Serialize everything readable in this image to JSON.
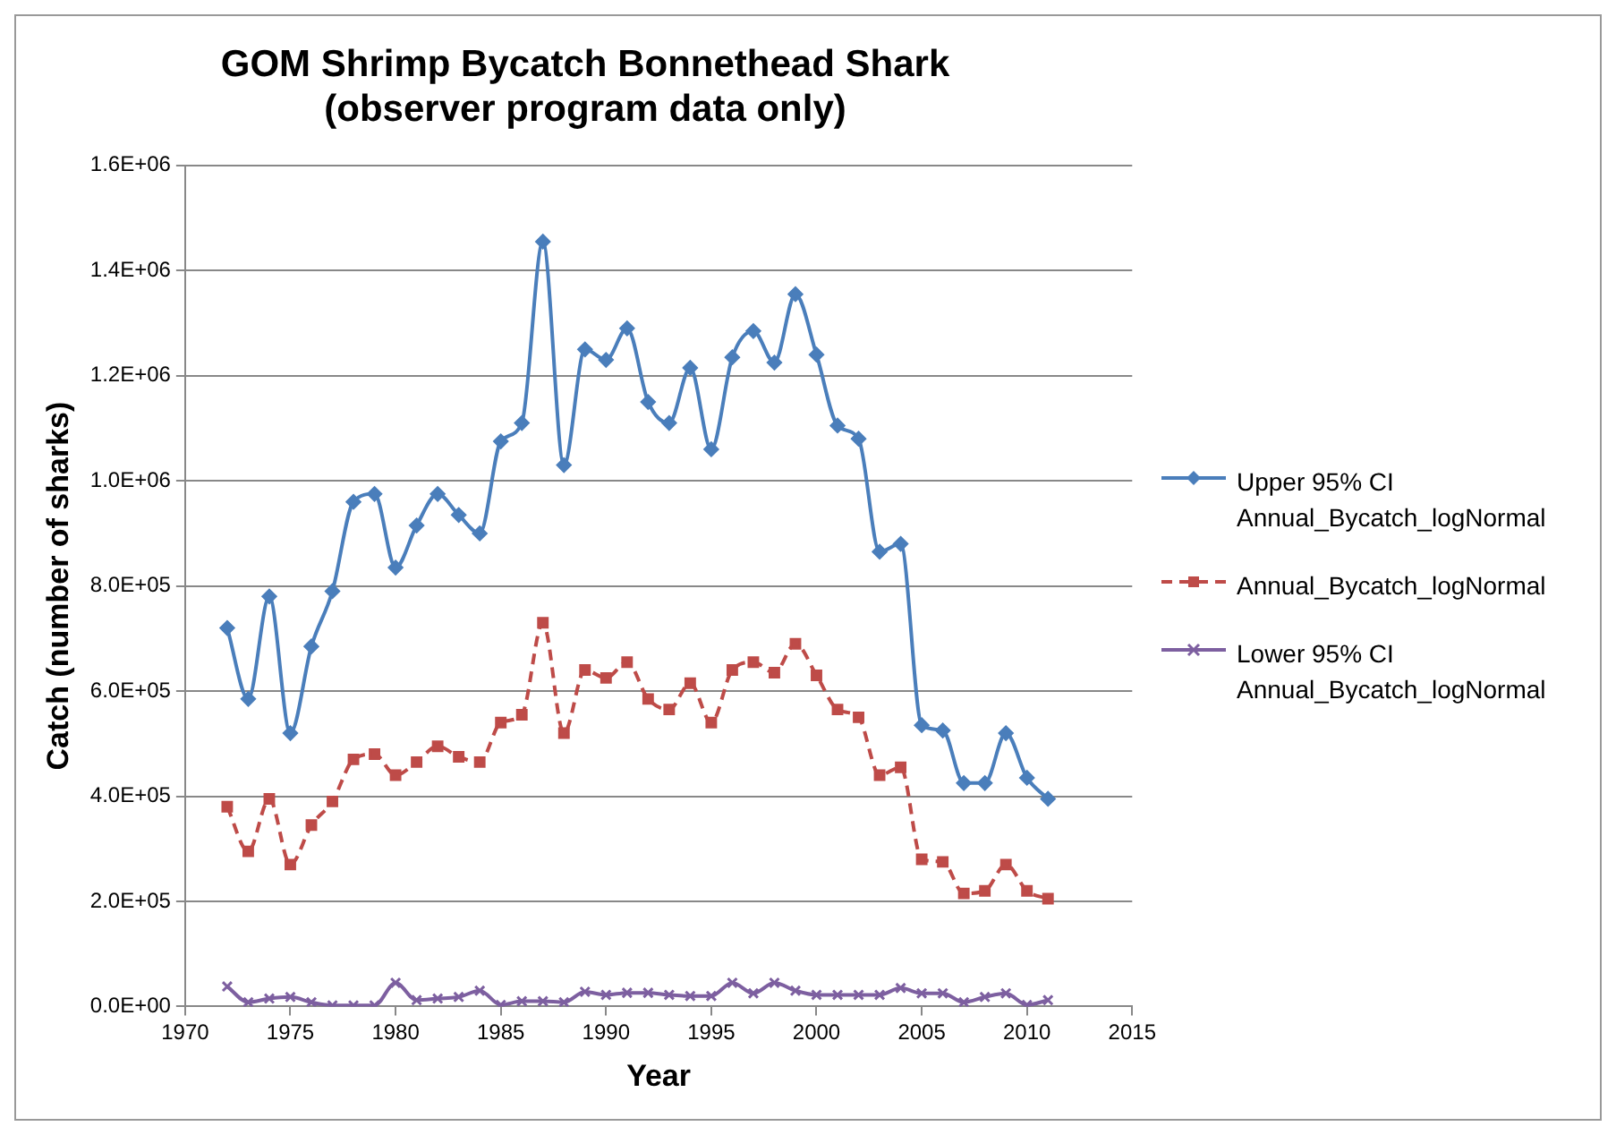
{
  "chart_data": {
    "type": "line",
    "title": "GOM Shrimp Bycatch Bonnethead Shark\n(observer program data only)",
    "xlabel": "Year",
    "ylabel": "Catch (number of sharks)",
    "x": [
      1972,
      1973,
      1974,
      1975,
      1976,
      1977,
      1978,
      1979,
      1980,
      1981,
      1982,
      1983,
      1984,
      1985,
      1986,
      1987,
      1988,
      1989,
      1990,
      1991,
      1992,
      1993,
      1994,
      1995,
      1996,
      1997,
      1998,
      1999,
      2000,
      2001,
      2002,
      2003,
      2004,
      2005,
      2006,
      2007,
      2008,
      2009,
      2010,
      2011
    ],
    "series": [
      {
        "name": "Upper 95% CI Annual_Bycatch_logNormal",
        "color": "#4a7ebb",
        "marker": "diamond",
        "line_style": "solid",
        "values": [
          720000,
          585000,
          780000,
          520000,
          685000,
          790000,
          960000,
          975000,
          835000,
          915000,
          975000,
          935000,
          900000,
          1075000,
          1110000,
          1455000,
          1030000,
          1250000,
          1230000,
          1290000,
          1150000,
          1110000,
          1215000,
          1060000,
          1235000,
          1285000,
          1225000,
          1355000,
          1240000,
          1105000,
          1080000,
          865000,
          880000,
          535000,
          525000,
          425000,
          425000,
          520000,
          435000,
          395000
        ]
      },
      {
        "name": "Annual_Bycatch_logNormal",
        "color": "#be4b48",
        "marker": "square",
        "line_style": "dashed",
        "values": [
          380000,
          295000,
          395000,
          270000,
          345000,
          390000,
          470000,
          480000,
          440000,
          465000,
          495000,
          475000,
          465000,
          540000,
          555000,
          730000,
          520000,
          640000,
          625000,
          655000,
          585000,
          565000,
          615000,
          540000,
          640000,
          655000,
          635000,
          690000,
          630000,
          565000,
          550000,
          440000,
          455000,
          280000,
          275000,
          215000,
          220000,
          270000,
          220000,
          205000
        ]
      },
      {
        "name": "Lower 95% CI Annual_Bycatch_logNormal",
        "color": "#7d5fa0",
        "marker": "cross",
        "line_style": "solid",
        "values": [
          38000,
          8000,
          15000,
          18000,
          8000,
          2000,
          2000,
          2000,
          45000,
          12000,
          15000,
          18000,
          30000,
          3000,
          10000,
          10000,
          8000,
          28000,
          22000,
          26000,
          26000,
          22000,
          20000,
          20000,
          45000,
          25000,
          45000,
          30000,
          22000,
          22000,
          22000,
          22000,
          35000,
          25000,
          25000,
          8000,
          18000,
          25000,
          3000,
          12000
        ]
      }
    ],
    "xlim": [
      1970,
      2015
    ],
    "xticks": [
      1970,
      1975,
      1980,
      1985,
      1990,
      1995,
      2000,
      2005,
      2010,
      2015
    ],
    "ylim": [
      0,
      1600000
    ],
    "yticks": [
      {
        "value": 0,
        "label": "0.0E+00"
      },
      {
        "value": 200000,
        "label": "2.0E+05"
      },
      {
        "value": 400000,
        "label": "4.0E+05"
      },
      {
        "value": 600000,
        "label": "6.0E+05"
      },
      {
        "value": 800000,
        "label": "8.0E+05"
      },
      {
        "value": 1000000,
        "label": "1.0E+06"
      },
      {
        "value": 1200000,
        "label": "1.2E+06"
      },
      {
        "value": 1400000,
        "label": "1.4E+06"
      },
      {
        "value": 1600000,
        "label": "1.6E+06"
      }
    ],
    "grid": "y",
    "legend": "right"
  }
}
